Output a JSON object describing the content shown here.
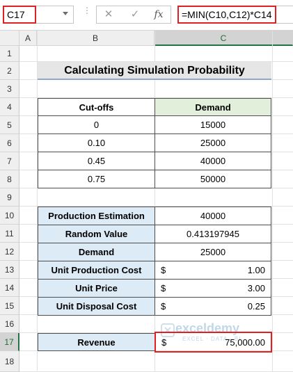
{
  "formula_bar": {
    "name_box": "C17",
    "cancel_icon": "✕",
    "enter_icon": "✓",
    "fx_label": "fx",
    "formula": "=MIN(C10,C12)*C14"
  },
  "columns": [
    "A",
    "B",
    "C"
  ],
  "rows": [
    "1",
    "2",
    "3",
    "4",
    "5",
    "6",
    "7",
    "8",
    "9",
    "10",
    "11",
    "12",
    "13",
    "14",
    "15",
    "16",
    "17",
    "18"
  ],
  "title": "Calculating Simulation Probability",
  "cutoff_table": {
    "headers": [
      "Cut-offs",
      "Demand"
    ],
    "rows": [
      [
        "0",
        "15000"
      ],
      [
        "0.10",
        "25000"
      ],
      [
        "0.45",
        "40000"
      ],
      [
        "0.75",
        "50000"
      ]
    ]
  },
  "params_table": {
    "production_estimation": {
      "label": "Production Estimation",
      "value": "40000"
    },
    "random_value": {
      "label": "Random Value",
      "value": "0.413197945"
    },
    "demand": {
      "label": "Demand",
      "value": "25000"
    },
    "unit_production_cost": {
      "label": "Unit Production Cost",
      "symbol": "$",
      "value": "1.00"
    },
    "unit_price": {
      "label": "Unit Price",
      "symbol": "$",
      "value": "3.00"
    },
    "unit_disposal_cost": {
      "label": "Unit Disposal Cost",
      "symbol": "$",
      "value": "0.25"
    }
  },
  "revenue": {
    "label": "Revenue",
    "symbol": "$",
    "value": "75,000.00"
  },
  "watermark": {
    "name": "exceldemy",
    "tagline": "EXCEL · DATA · BI"
  },
  "colors": {
    "selection_border": "#e02020",
    "header_green": "#e2efda",
    "label_blue": "#ddebf7",
    "excel_green": "#217346"
  }
}
